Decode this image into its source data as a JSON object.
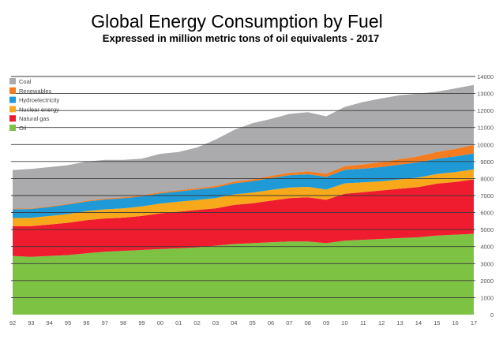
{
  "chart_data": {
    "type": "area",
    "stacked": true,
    "title": "Global Energy Consumption by Fuel",
    "subtitle": "Expressed in million metric tons of oil equivalents - 2017",
    "categories": [
      "92",
      "93",
      "94",
      "95",
      "96",
      "97",
      "98",
      "99",
      "00",
      "01",
      "02",
      "03",
      "04",
      "05",
      "06",
      "07",
      "08",
      "09",
      "10",
      "11",
      "12",
      "13",
      "14",
      "15",
      "16",
      "17"
    ],
    "xlabel": "",
    "ylabel": "",
    "ylim": [
      0,
      14000
    ],
    "y_ticks": [
      "0",
      "1000",
      "2000",
      "3000",
      "4000",
      "5000",
      "6000",
      "7000",
      "8000",
      "9000",
      "10000",
      "11000",
      "12000",
      "13000",
      "14000"
    ],
    "grid": true,
    "legend_position": "top-left",
    "series": [
      {
        "name": "Oil",
        "color": "#7dc243",
        "values": [
          3450,
          3400,
          3450,
          3500,
          3600,
          3700,
          3750,
          3800,
          3850,
          3900,
          3950,
          4050,
          4150,
          4200,
          4250,
          4300,
          4300,
          4200,
          4350,
          4400,
          4450,
          4500,
          4550,
          4650,
          4700,
          4750
        ]
      },
      {
        "name": "Natural gas",
        "color": "#ee1c2e",
        "values": [
          1750,
          1800,
          1850,
          1900,
          1950,
          1950,
          1950,
          2000,
          2100,
          2150,
          2200,
          2200,
          2300,
          2350,
          2450,
          2550,
          2600,
          2550,
          2750,
          2800,
          2850,
          2900,
          2950,
          3050,
          3100,
          3200
        ]
      },
      {
        "name": "Nuclear energy",
        "color": "#f7a81b",
        "values": [
          480,
          490,
          500,
          510,
          530,
          540,
          550,
          560,
          580,
          590,
          590,
          600,
          620,
          620,
          630,
          620,
          610,
          600,
          620,
          580,
          540,
          550,
          560,
          570,
          580,
          590
        ]
      },
      {
        "name": "Hydroelectricity",
        "color": "#1f9ad6",
        "values": [
          510,
          520,
          530,
          560,
          570,
          580,
          590,
          590,
          600,
          600,
          610,
          620,
          650,
          670,
          700,
          720,
          740,
          750,
          790,
          800,
          840,
          870,
          890,
          900,
          920,
          940
        ]
      },
      {
        "name": "Renewables",
        "color": "#f47c20",
        "values": [
          40,
          40,
          45,
          45,
          50,
          55,
          60,
          65,
          70,
          75,
          80,
          90,
          100,
          110,
          130,
          150,
          170,
          190,
          220,
          250,
          290,
          320,
          360,
          400,
          450,
          500
        ]
      },
      {
        "name": "Coal",
        "color": "#abaaac",
        "values": [
          2270,
          2310,
          2300,
          2270,
          2300,
          2270,
          2200,
          2150,
          2250,
          2250,
          2400,
          2730,
          3030,
          3300,
          3340,
          3460,
          3480,
          3370,
          3480,
          3670,
          3740,
          3760,
          3690,
          3530,
          3550,
          3520
        ]
      }
    ]
  }
}
